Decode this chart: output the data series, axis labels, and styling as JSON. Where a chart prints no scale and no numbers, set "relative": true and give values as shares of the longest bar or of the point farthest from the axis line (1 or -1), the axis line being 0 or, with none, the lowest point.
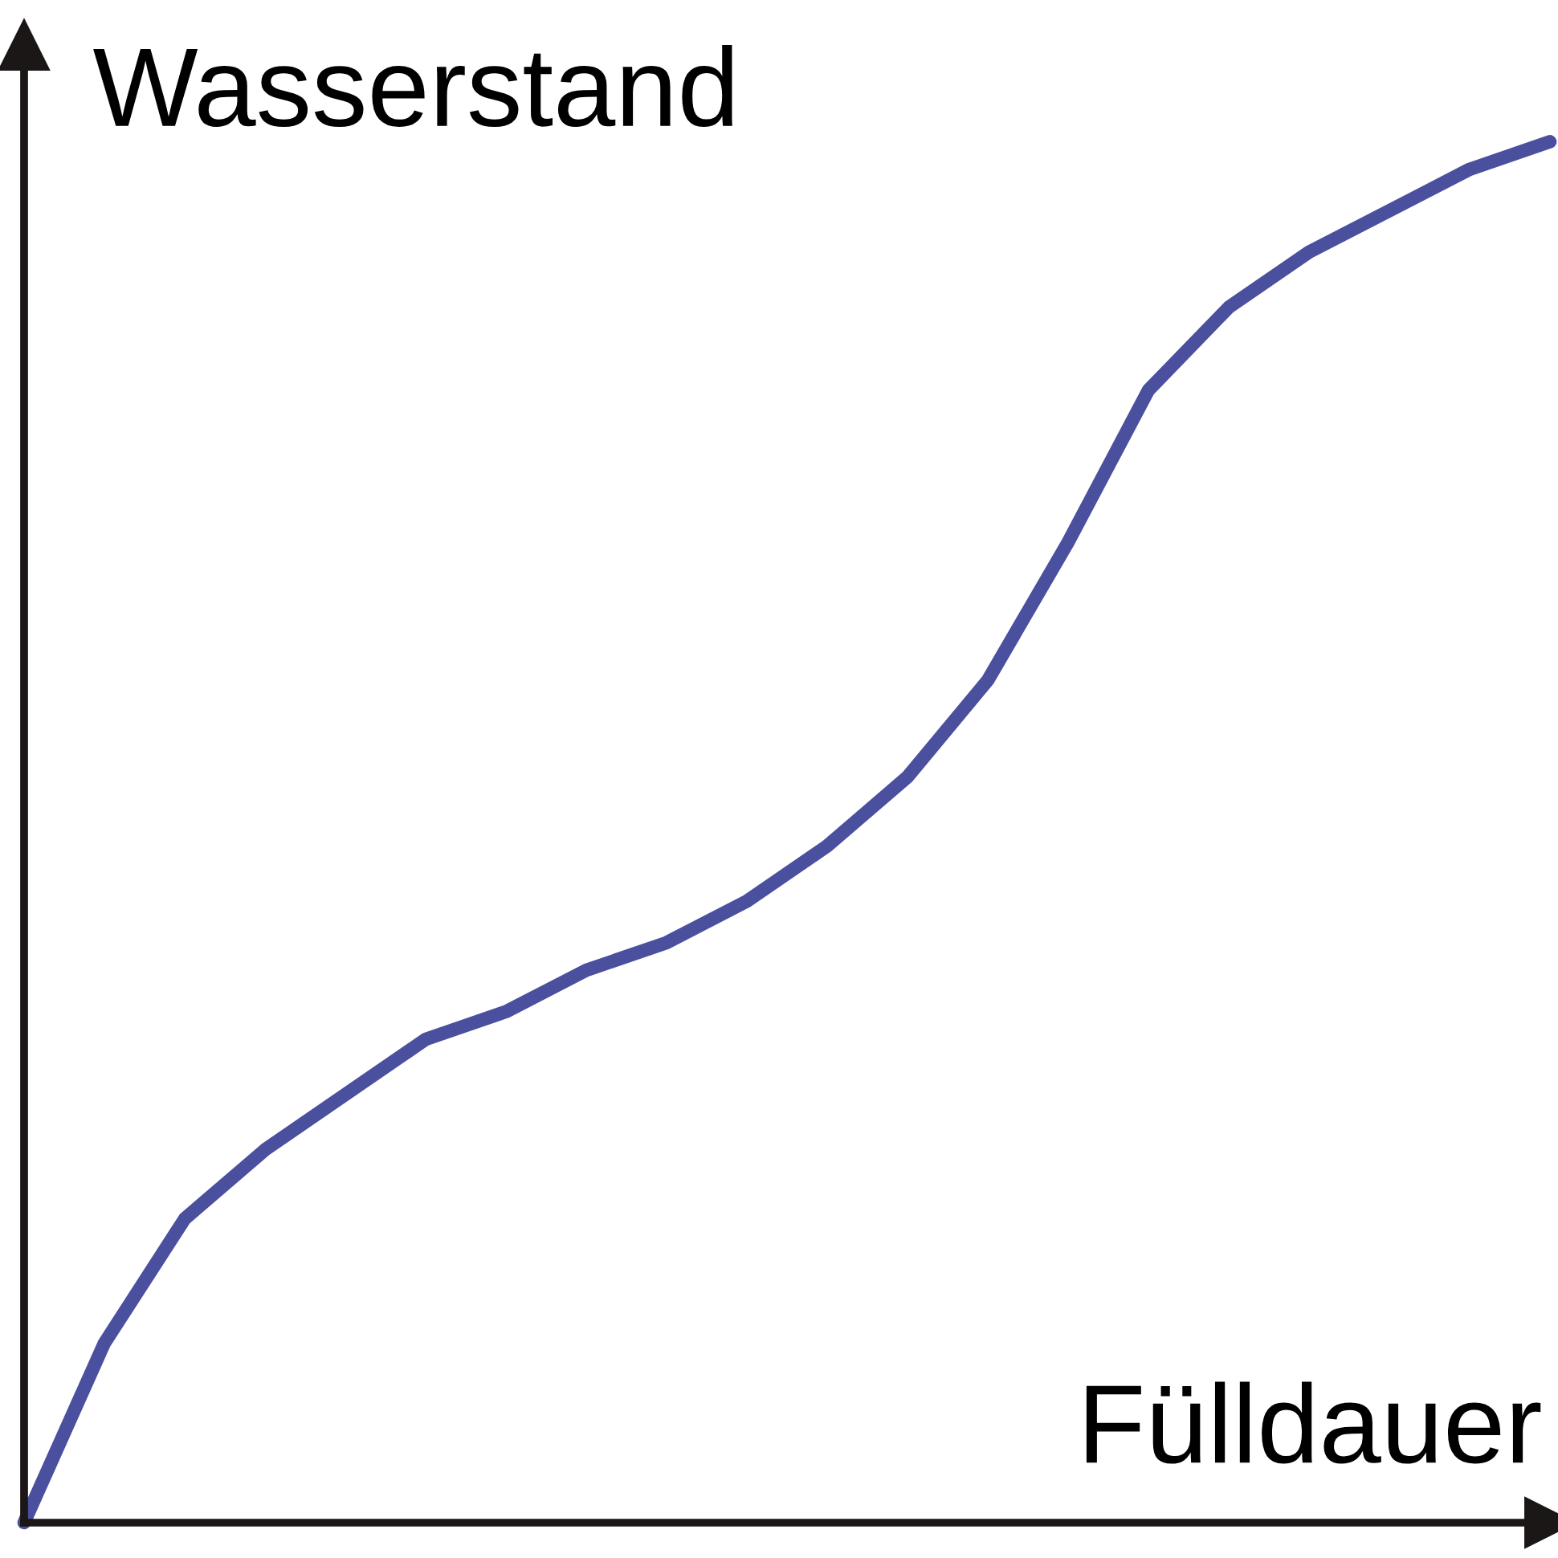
{
  "chart_data": {
    "type": "line",
    "relative": true,
    "xlabel": "Fülldauer",
    "ylabel": "Wasserstand",
    "categories": [
      null,
      null,
      null,
      null,
      null,
      null,
      null,
      null,
      null,
      null,
      null,
      null,
      null,
      null,
      null,
      null,
      null,
      null,
      null,
      null
    ],
    "series": [
      {
        "color": "#4a4f9e",
        "values": [
          0,
          0.13,
          0.22,
          0.27,
          0.31,
          0.35,
          0.37,
          0.4,
          0.42,
          0.45,
          0.49,
          0.54,
          0.61,
          0.71,
          0.82,
          0.88,
          0.92,
          0.95,
          0.98,
          1
        ]
      }
    ],
    "grid": false,
    "legend": false,
    "marker": "none",
    "line_style": "solid"
  }
}
